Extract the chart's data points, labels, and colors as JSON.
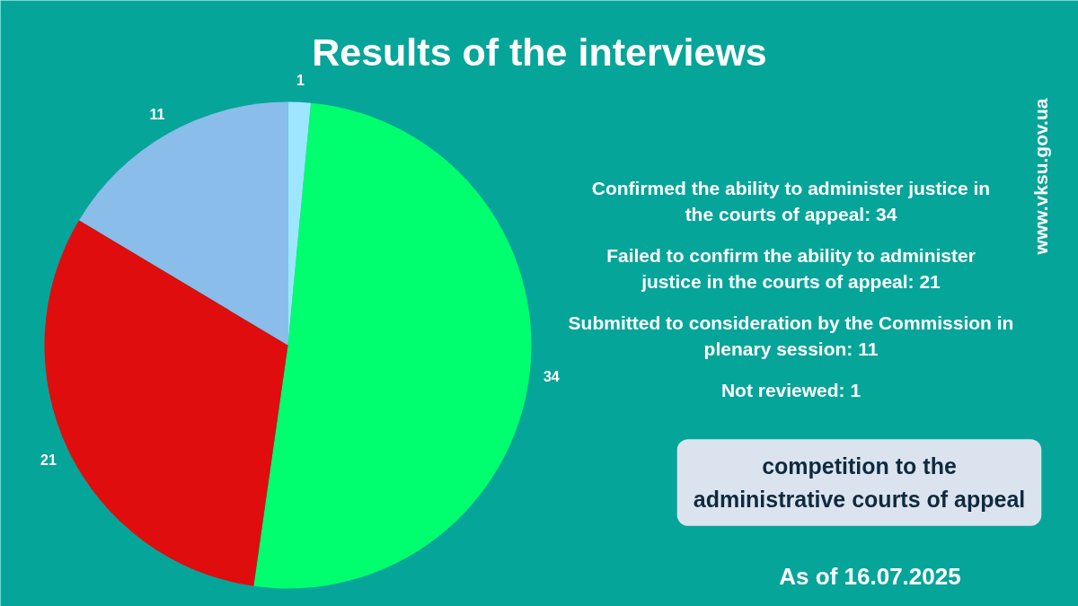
{
  "chart_data": {
    "type": "pie",
    "title": "Results of the interviews",
    "subtitle": "competition to the administrative courts of appeal",
    "categories": [
      null,
      null,
      null,
      null
    ],
    "values": [
      34,
      21,
      11,
      1
    ],
    "colors": [
      "#00ff6e",
      "#df0d0d",
      "#8abde9",
      "#9ee5ff"
    ],
    "data_labels": true,
    "annotations": [
      "Confirmed the ability to administer justice in the courts of appeal: 34",
      "Failed to confirm the ability to administer justice in the courts of appeal: 21",
      "Submitted to consideration by the Commission in plenary session: 11",
      "Not reviewed: 1",
      "As of 16.07.2025",
      "www.vksu.gov.ua"
    ]
  }
}
